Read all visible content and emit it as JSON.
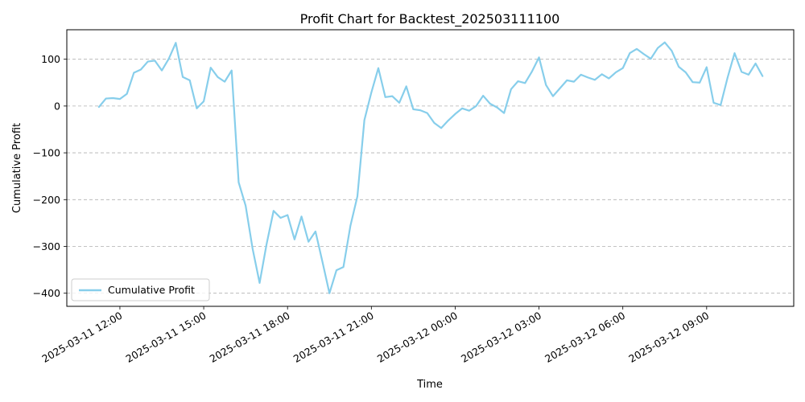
{
  "chart_data": {
    "type": "line",
    "title": "Profit Chart for Backtest_202503111100",
    "xlabel": "Time",
    "ylabel": "Cumulative Profit",
    "ylim": [
      -428,
      163
    ],
    "xlim": [
      "2025-03-11 10:06",
      "2025-03-12 12:07"
    ],
    "yticks": [
      -400,
      -300,
      -200,
      -100,
      0,
      100
    ],
    "xticks": [
      "2025-03-11 12:00",
      "2025-03-11 15:00",
      "2025-03-11 18:00",
      "2025-03-11 21:00",
      "2025-03-12 00:00",
      "2025-03-12 03:00",
      "2025-03-12 06:00",
      "2025-03-12 09:00"
    ],
    "grid": "y-dashed",
    "legend": "lower-left",
    "color": "#87CEEB",
    "series": [
      {
        "name": "Cumulative Profit",
        "points": [
          [
            "2025-03-11 11:15",
            -2
          ],
          [
            "2025-03-11 11:30",
            16
          ],
          [
            "2025-03-11 11:45",
            17
          ],
          [
            "2025-03-11 12:00",
            15
          ],
          [
            "2025-03-11 12:15",
            26
          ],
          [
            "2025-03-11 12:30",
            71
          ],
          [
            "2025-03-11 12:45",
            78
          ],
          [
            "2025-03-11 13:00",
            95
          ],
          [
            "2025-03-11 13:15",
            97
          ],
          [
            "2025-03-11 13:30",
            76
          ],
          [
            "2025-03-11 13:45",
            101
          ],
          [
            "2025-03-11 14:00",
            135
          ],
          [
            "2025-03-11 14:15",
            62
          ],
          [
            "2025-03-11 14:30",
            55
          ],
          [
            "2025-03-11 14:45",
            -5
          ],
          [
            "2025-03-11 15:00",
            10
          ],
          [
            "2025-03-11 15:15",
            82
          ],
          [
            "2025-03-11 15:30",
            62
          ],
          [
            "2025-03-11 15:45",
            52
          ],
          [
            "2025-03-11 16:00",
            76
          ],
          [
            "2025-03-11 16:15",
            -163
          ],
          [
            "2025-03-11 16:30",
            -213
          ],
          [
            "2025-03-11 16:45",
            -305
          ],
          [
            "2025-03-11 17:00",
            -378
          ],
          [
            "2025-03-11 17:15",
            -295
          ],
          [
            "2025-03-11 17:30",
            -224
          ],
          [
            "2025-03-11 17:45",
            -239
          ],
          [
            "2025-03-11 18:00",
            -233
          ],
          [
            "2025-03-11 18:15",
            -285
          ],
          [
            "2025-03-11 18:30",
            -236
          ],
          [
            "2025-03-11 18:45",
            -290
          ],
          [
            "2025-03-11 19:00",
            -268
          ],
          [
            "2025-03-11 19:15",
            -333
          ],
          [
            "2025-03-11 19:30",
            -400
          ],
          [
            "2025-03-11 19:45",
            -351
          ],
          [
            "2025-03-11 20:00",
            -344
          ],
          [
            "2025-03-11 20:15",
            -256
          ],
          [
            "2025-03-11 20:30",
            -193
          ],
          [
            "2025-03-11 20:45",
            -30
          ],
          [
            "2025-03-11 21:00",
            29
          ],
          [
            "2025-03-11 21:15",
            81
          ],
          [
            "2025-03-11 21:30",
            19
          ],
          [
            "2025-03-11 21:45",
            21
          ],
          [
            "2025-03-11 22:00",
            7
          ],
          [
            "2025-03-11 22:15",
            42
          ],
          [
            "2025-03-11 22:30",
            -7
          ],
          [
            "2025-03-11 22:45",
            -9
          ],
          [
            "2025-03-11 23:00",
            -15
          ],
          [
            "2025-03-11 23:15",
            -36
          ],
          [
            "2025-03-11 23:30",
            -47
          ],
          [
            "2025-03-11 23:45",
            -31
          ],
          [
            "2025-03-12 00:00",
            -17
          ],
          [
            "2025-03-12 00:15",
            -5
          ],
          [
            "2025-03-12 00:30",
            -10
          ],
          [
            "2025-03-12 00:45",
            0
          ],
          [
            "2025-03-12 01:00",
            22
          ],
          [
            "2025-03-12 01:15",
            5
          ],
          [
            "2025-03-12 01:30",
            -3
          ],
          [
            "2025-03-12 01:45",
            -15
          ],
          [
            "2025-03-12 02:00",
            36
          ],
          [
            "2025-03-12 02:15",
            53
          ],
          [
            "2025-03-12 02:30",
            49
          ],
          [
            "2025-03-12 02:45",
            74
          ],
          [
            "2025-03-12 03:00",
            104
          ],
          [
            "2025-03-12 03:15",
            45
          ],
          [
            "2025-03-12 03:30",
            21
          ],
          [
            "2025-03-12 03:45",
            38
          ],
          [
            "2025-03-12 04:00",
            55
          ],
          [
            "2025-03-12 04:15",
            52
          ],
          [
            "2025-03-12 04:30",
            67
          ],
          [
            "2025-03-12 04:45",
            61
          ],
          [
            "2025-03-12 05:00",
            56
          ],
          [
            "2025-03-12 05:15",
            68
          ],
          [
            "2025-03-12 05:30",
            59
          ],
          [
            "2025-03-12 05:45",
            72
          ],
          [
            "2025-03-12 06:00",
            81
          ],
          [
            "2025-03-12 06:15",
            113
          ],
          [
            "2025-03-12 06:30",
            122
          ],
          [
            "2025-03-12 06:45",
            111
          ],
          [
            "2025-03-12 07:00",
            101
          ],
          [
            "2025-03-12 07:15",
            124
          ],
          [
            "2025-03-12 07:30",
            136
          ],
          [
            "2025-03-12 07:45",
            118
          ],
          [
            "2025-03-12 08:00",
            84
          ],
          [
            "2025-03-12 08:15",
            72
          ],
          [
            "2025-03-12 08:30",
            51
          ],
          [
            "2025-03-12 08:45",
            50
          ],
          [
            "2025-03-12 09:00",
            83
          ],
          [
            "2025-03-12 09:15",
            7
          ],
          [
            "2025-03-12 09:30",
            2
          ],
          [
            "2025-03-12 09:45",
            61
          ],
          [
            "2025-03-12 10:00",
            113
          ],
          [
            "2025-03-12 10:15",
            73
          ],
          [
            "2025-03-12 10:30",
            67
          ],
          [
            "2025-03-12 10:45",
            91
          ],
          [
            "2025-03-12 11:00",
            64
          ]
        ]
      }
    ]
  }
}
